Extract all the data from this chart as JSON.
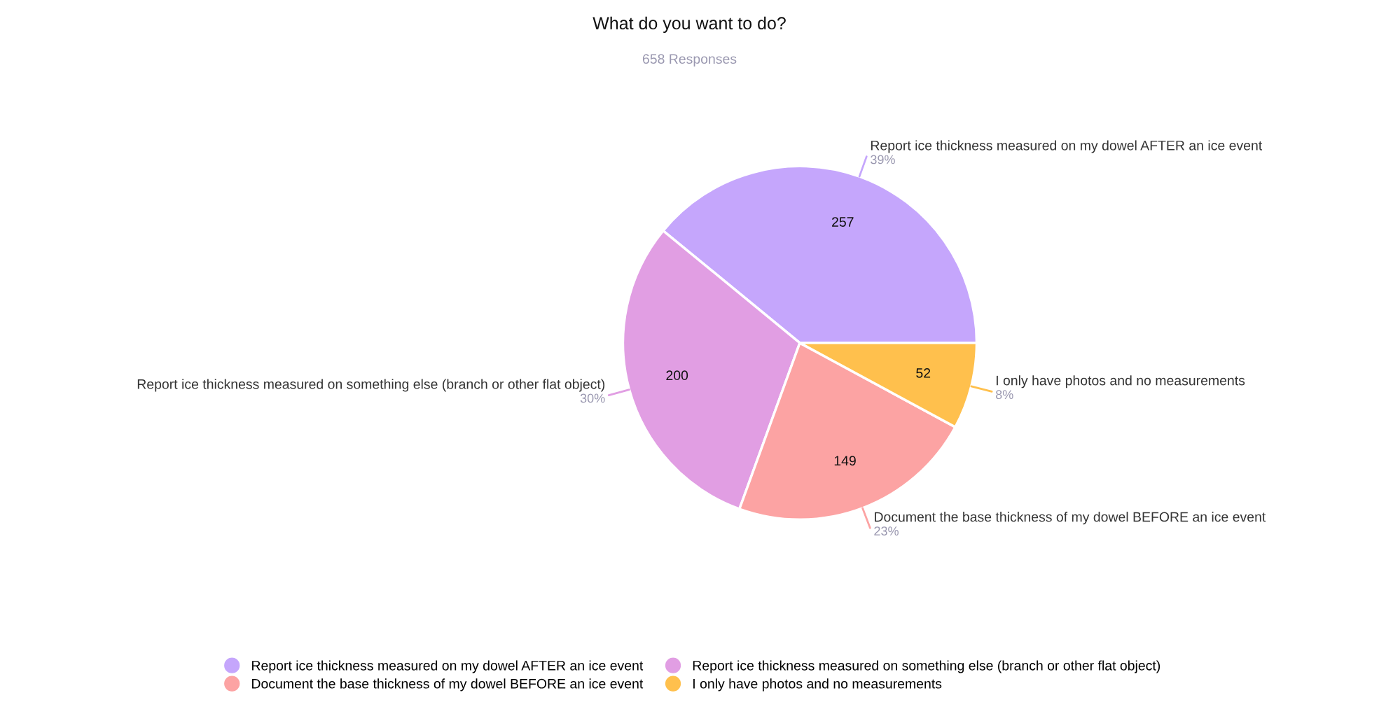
{
  "chart_data": {
    "type": "pie",
    "title": "What do you want to do?",
    "subtitle": "658 Responses",
    "categories": [
      "Report ice thickness measured on my dowel AFTER an ice event",
      "Report ice thickness measured on something else (branch or other flat object)",
      "Document the base thickness of my dowel BEFORE an ice event",
      "I only have photos and no measurements"
    ],
    "values": [
      257,
      200,
      149,
      52
    ],
    "colors": [
      "#c5a6fc",
      "#e19ee3",
      "#fca3a3",
      "#ffc04d"
    ],
    "annotations": [
      {
        "text": "39%",
        "x": "Report ice thickness measured on my dowel AFTER an ice event"
      },
      {
        "text": "30%",
        "x": "Report ice thickness measured on something else (branch or other flat object)"
      },
      {
        "text": "23%",
        "x": "Document the base thickness of my dowel BEFORE an ice event"
      },
      {
        "text": "8%",
        "x": "I only have photos and no measurements"
      }
    ],
    "data_labels": true,
    "legend": "bottom"
  }
}
